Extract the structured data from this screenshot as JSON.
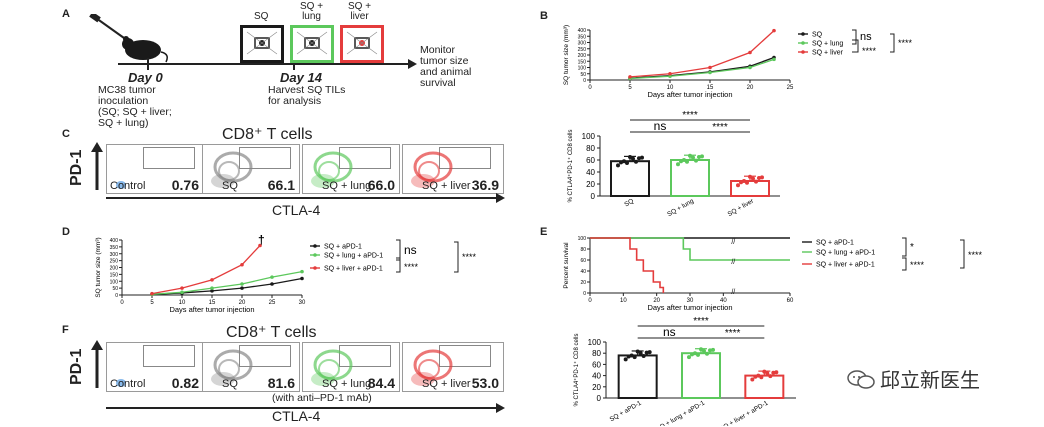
{
  "panels": {
    "a": "A",
    "b": "B",
    "c": "C",
    "d": "D",
    "e": "E",
    "f": "F"
  },
  "timeline": {
    "day0": "Day 0",
    "day14": "Day 14",
    "inoculation": [
      "MC38 tumor",
      "inoculation",
      "(SQ; SQ + liver;",
      "SQ + lung)"
    ],
    "harvest": [
      "Harvest SQ TILs",
      "for analysis"
    ],
    "monitor": [
      "Monitor",
      "tumor size",
      "and animal",
      "survival"
    ],
    "groups": [
      "SQ",
      "SQ +\nlung",
      "SQ +\nliver"
    ],
    "group_line1": [
      "SQ",
      "SQ +",
      "SQ +"
    ],
    "group_line2": [
      "",
      "lung",
      "liver"
    ]
  },
  "flow_c": {
    "title": "CD8⁺ T cells",
    "y_label": "PD-1",
    "x_label": "CTLA-4",
    "cells": [
      {
        "label": "Control",
        "value": "0.76"
      },
      {
        "label": "SQ",
        "value": "66.1"
      },
      {
        "label": "SQ + lung",
        "value": "66.0"
      },
      {
        "label": "SQ + liver",
        "value": "36.9"
      }
    ]
  },
  "flow_f": {
    "title": "CD8⁺ T cells",
    "y_label": "PD-1",
    "x_label": "CTLA-4",
    "note": "(with anti–PD-1 mAb)",
    "cells": [
      {
        "label": "Control",
        "value": "0.82"
      },
      {
        "label": "SQ",
        "value": "81.6"
      },
      {
        "label": "SQ + lung",
        "value": "84.4"
      },
      {
        "label": "SQ + liver",
        "value": "53.0"
      }
    ]
  },
  "sig": {
    "ns": "ns",
    "stars": "****",
    "one": "*",
    "dagger": "†"
  },
  "watermark": "邱立新医生",
  "colors": {
    "black": "#1a1a1a",
    "green": "#5cc85c",
    "red": "#e43c3c"
  },
  "chart_data": [
    {
      "id": "B",
      "type": "line",
      "title": "",
      "xlabel": "Days after tumor injection",
      "ylabel": "SQ tumor size (mm³)",
      "xlim": [
        0,
        25
      ],
      "ylim": [
        0,
        400
      ],
      "xticks": [
        0,
        5,
        10,
        15,
        20,
        25
      ],
      "yticks": [
        0,
        50,
        100,
        150,
        200,
        250,
        300,
        350,
        400
      ],
      "series": [
        {
          "name": "SQ",
          "color": "#1a1a1a",
          "x": [
            5,
            10,
            15,
            20,
            23
          ],
          "y": [
            15,
            35,
            65,
            110,
            180
          ]
        },
        {
          "name": "SQ + lung",
          "color": "#5cc85c",
          "x": [
            5,
            10,
            15,
            20,
            23
          ],
          "y": [
            12,
            30,
            60,
            100,
            165
          ]
        },
        {
          "name": "SQ + liver",
          "color": "#e43c3c",
          "x": [
            5,
            10,
            15,
            20,
            23
          ],
          "y": [
            25,
            50,
            100,
            220,
            395
          ]
        }
      ]
    },
    {
      "id": "C-bar",
      "type": "bar",
      "ylabel": "% CTLA4⁺PD-1⁺ CD8 cells",
      "ylim": [
        0,
        100
      ],
      "yticks": [
        0,
        20,
        40,
        60,
        80,
        100
      ],
      "categories": [
        "SQ",
        "SQ + lung",
        "SQ + liver"
      ],
      "colors": [
        "#1a1a1a",
        "#5cc85c",
        "#e43c3c"
      ],
      "values": [
        58,
        60,
        25
      ]
    },
    {
      "id": "D",
      "type": "line",
      "xlabel": "Days after tumor injection",
      "ylabel": "SQ tumor size (mm³)",
      "xlim": [
        0,
        30
      ],
      "ylim": [
        0,
        400
      ],
      "xticks": [
        0,
        5,
        10,
        15,
        20,
        25,
        30
      ],
      "yticks": [
        0,
        50,
        100,
        150,
        200,
        250,
        300,
        350,
        400
      ],
      "series": [
        {
          "name": "SQ + aPD-1",
          "color": "#1a1a1a",
          "x": [
            5,
            10,
            15,
            20,
            25,
            30
          ],
          "y": [
            5,
            15,
            30,
            50,
            80,
            120
          ]
        },
        {
          "name": "SQ + lung + aPD-1",
          "color": "#5cc85c",
          "x": [
            5,
            10,
            15,
            20,
            25,
            30
          ],
          "y": [
            5,
            20,
            50,
            80,
            130,
            170
          ]
        },
        {
          "name": "SQ + liver + aPD-1",
          "color": "#e43c3c",
          "x": [
            5,
            10,
            15,
            20,
            23
          ],
          "y": [
            10,
            50,
            110,
            220,
            360
          ]
        }
      ]
    },
    {
      "id": "E",
      "type": "line",
      "xlabel": "Days after tumor injection",
      "ylabel": "Percent survival",
      "xlim": [
        0,
        60
      ],
      "ylim": [
        0,
        100
      ],
      "xticks": [
        0,
        10,
        20,
        30,
        40,
        60
      ],
      "yticks": [
        0,
        20,
        40,
        60,
        80,
        100
      ],
      "series": [
        {
          "name": "SQ + aPD-1",
          "color": "#1a1a1a",
          "x": [
            0,
            60
          ],
          "y": [
            100,
            100
          ]
        },
        {
          "name": "SQ + lung + aPD-1",
          "color": "#5cc85c",
          "x": [
            0,
            28,
            28,
            30,
            30,
            60
          ],
          "y": [
            100,
            100,
            80,
            80,
            60,
            60
          ]
        },
        {
          "name": "SQ + liver + aPD-1",
          "color": "#e43c3c",
          "x": [
            0,
            12,
            12,
            14,
            14,
            16,
            16,
            19,
            19,
            21,
            21,
            22,
            22
          ],
          "y": [
            100,
            100,
            80,
            80,
            60,
            60,
            40,
            40,
            20,
            20,
            10,
            10,
            0
          ]
        }
      ]
    },
    {
      "id": "F-bar",
      "type": "bar",
      "ylabel": "% CTLA4⁺PD-1⁺ CD8 cells",
      "ylim": [
        0,
        100
      ],
      "yticks": [
        0,
        20,
        40,
        60,
        80,
        100
      ],
      "categories": [
        "SQ + aPD-1",
        "SQ + lung + aPD-1",
        "SQ + liver + aPD-1"
      ],
      "colors": [
        "#1a1a1a",
        "#5cc85c",
        "#e43c3c"
      ],
      "values": [
        76,
        80,
        40
      ]
    }
  ]
}
